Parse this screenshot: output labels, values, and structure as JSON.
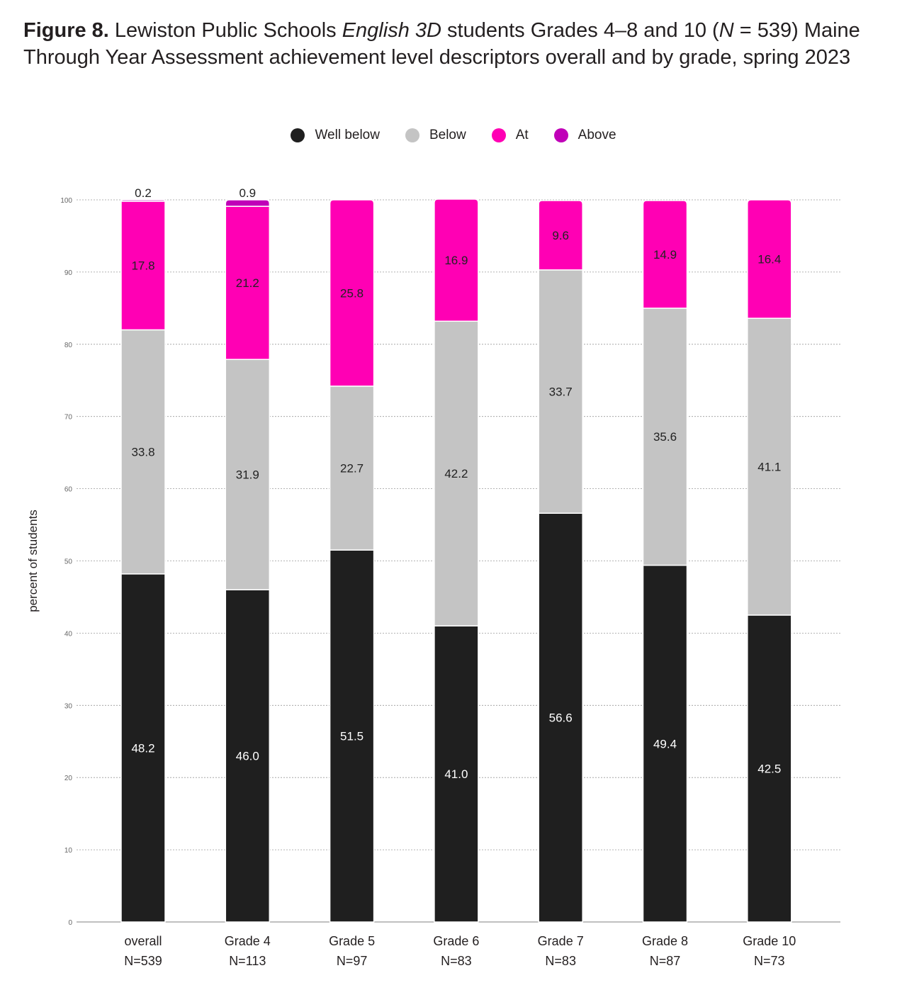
{
  "figure": {
    "label": "Figure 8.",
    "title_part1": " Lewiston Public Schools ",
    "title_italic1": "English 3D",
    "title_part2": " students Grades 4–8 and 10 (",
    "title_italic2": "N",
    "title_part3": " = 539) Maine Through Year Assessment achievement level descriptors overall and by grade, spring 2023"
  },
  "legend": [
    {
      "name": "Well below",
      "color": "#1f1f1f"
    },
    {
      "name": "Below",
      "color": "#c4c4c4"
    },
    {
      "name": "At",
      "color": "#ff00b4"
    },
    {
      "name": "Above",
      "color": "#c000b8"
    }
  ],
  "chart_data": {
    "type": "bar",
    "stacked": true,
    "title": "Lewiston Public Schools English 3D students Grades 4–8 and 10 (N = 539) Maine Through Year Assessment achievement level descriptors overall and by grade, spring 2023",
    "ylabel": "percent of students",
    "xlabel": "",
    "ylim": [
      0,
      100
    ],
    "yticks": [
      0,
      10,
      20,
      30,
      40,
      50,
      60,
      70,
      80,
      90,
      100
    ],
    "grid": true,
    "legend_position": "top-center",
    "categories": [
      "overall",
      "Grade 4",
      "Grade 5",
      "Grade 6",
      "Grade 7",
      "Grade 8",
      "Grade 10"
    ],
    "category_n": [
      "N=539",
      "N=113",
      "N=97",
      "N=83",
      "N=83",
      "N=87",
      "N=73"
    ],
    "series": [
      {
        "name": "Well below",
        "color": "#1f1f1f",
        "label_color": "#ffffff",
        "values": [
          48.2,
          46.0,
          51.5,
          41.0,
          56.6,
          49.4,
          42.5
        ],
        "labels": [
          "48.2",
          "46.0",
          "51.5",
          "41.0",
          "56.6",
          "49.4",
          "42.5"
        ]
      },
      {
        "name": "Below",
        "color": "#c4c4c4",
        "label_color": "#222222",
        "values": [
          33.8,
          31.9,
          22.7,
          42.2,
          33.7,
          35.6,
          41.1
        ],
        "labels": [
          "33.8",
          "31.9",
          "22.7",
          "42.2",
          "33.7",
          "35.6",
          "41.1"
        ]
      },
      {
        "name": "At",
        "color": "#ff00b4",
        "label_color": "#222222",
        "values": [
          17.8,
          21.2,
          25.8,
          16.9,
          9.6,
          14.9,
          16.4
        ],
        "labels": [
          "17.8",
          "21.2",
          "25.8",
          "16.9",
          "9.6",
          "14.9",
          "16.4"
        ]
      },
      {
        "name": "Above",
        "color": "#c000b8",
        "label_color": "#222222",
        "values": [
          0.2,
          0.9,
          0,
          0,
          0,
          0,
          0
        ],
        "labels": [
          "0.2",
          "0.9",
          "",
          "",
          "",
          "",
          ""
        ]
      }
    ]
  }
}
